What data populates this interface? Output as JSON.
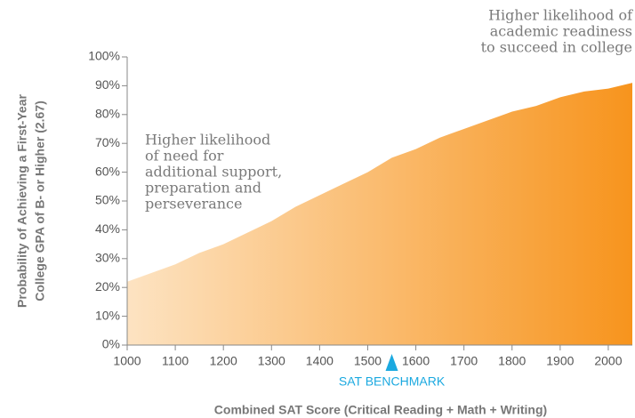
{
  "chart_data": {
    "type": "area",
    "x": [
      1000,
      1050,
      1100,
      1150,
      1200,
      1250,
      1300,
      1350,
      1400,
      1450,
      1500,
      1550,
      1600,
      1650,
      1700,
      1750,
      1800,
      1850,
      1900,
      1950,
      2000,
      2050
    ],
    "values": [
      22,
      25,
      28,
      32,
      35,
      39,
      43,
      48,
      52,
      56,
      60,
      65,
      68,
      72,
      75,
      78,
      81,
      83,
      86,
      88,
      89,
      91
    ],
    "color": "#f7941d",
    "color_light": "#fde3c2",
    "xlim": [
      1000,
      2050
    ],
    "ylim": [
      0,
      100
    ],
    "xticks": [
      1000,
      1100,
      1200,
      1300,
      1400,
      1500,
      1600,
      1700,
      1800,
      1900,
      2000
    ],
    "yticks": [
      {
        "value": 0,
        "label": "0%"
      },
      {
        "value": 10,
        "label": "10%"
      },
      {
        "value": 20,
        "label": "20%"
      },
      {
        "value": 30,
        "label": "30%"
      },
      {
        "value": 40,
        "label": "40%"
      },
      {
        "value": 50,
        "label": "50%"
      },
      {
        "value": 60,
        "label": "60%"
      },
      {
        "value": 70,
        "label": "70%"
      },
      {
        "value": 80,
        "label": "80%"
      },
      {
        "value": 90,
        "label": "90%"
      },
      {
        "value": 100,
        "label": "100%"
      }
    ],
    "x_label": "Combined SAT Score (Critical Reading + Math + Writing)",
    "y_label": [
      "Probability of Achieving a First-Year",
      "College GPA of B- or Higher (2.67)"
    ],
    "benchmark": {
      "label": "SAT BENCHMARK",
      "x": 1550,
      "color": "#1ba9e0"
    },
    "annotations": [
      [
        "Higher likelihood",
        "of need for",
        "additional support,",
        "preparation and",
        "perseverance"
      ],
      [
        "Higher likelihood of",
        "academic readiness",
        "to succeed in college"
      ]
    ]
  }
}
